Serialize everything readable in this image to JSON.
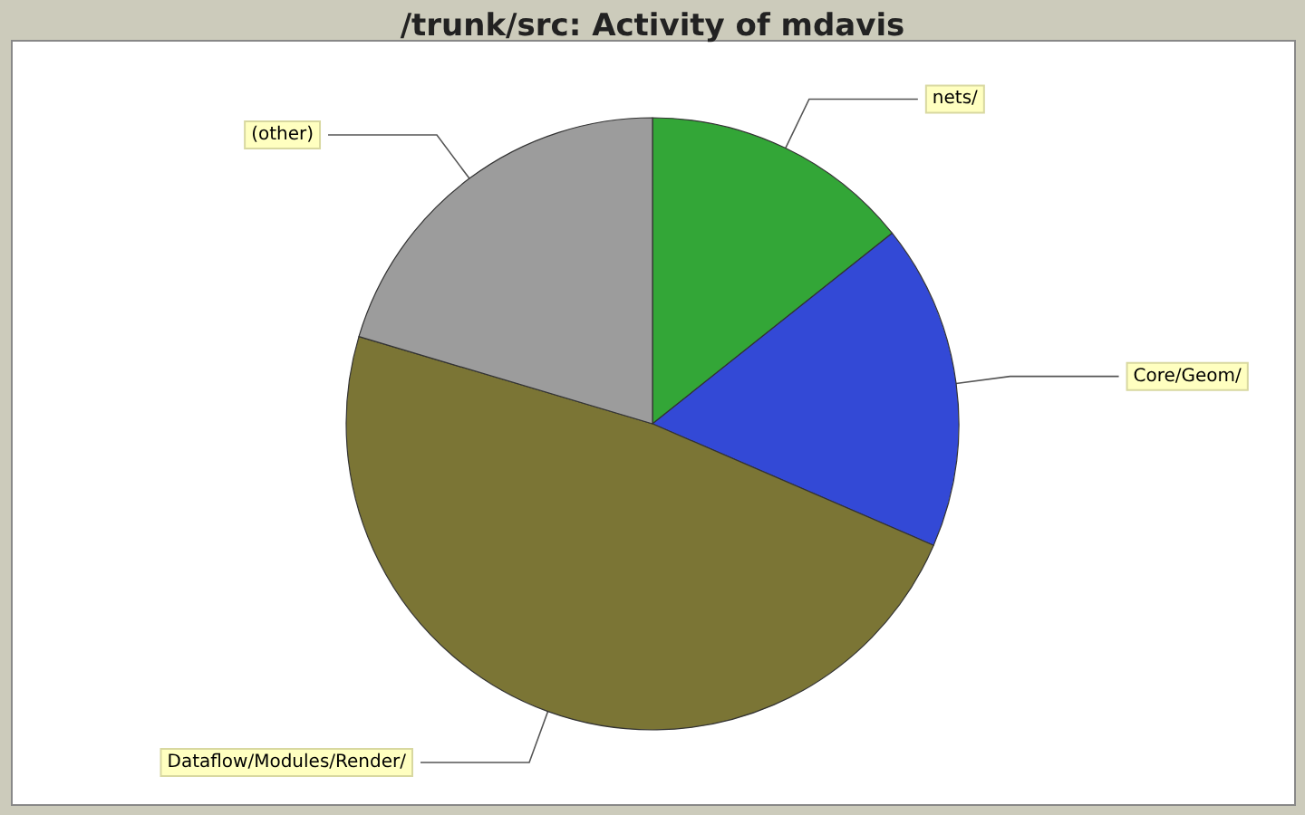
{
  "chart_data": {
    "type": "pie",
    "title": "/trunk/src: Activity of mdavis",
    "categories": [
      "nets/",
      "Core/Geom/",
      "Dataflow/Modules/Render/",
      "(other)"
    ],
    "values": [
      14.3,
      17.2,
      48.1,
      20.4
    ],
    "colors": [
      "#33a637",
      "#3349d6",
      "#7b7535",
      "#9c9c9c"
    ]
  }
}
